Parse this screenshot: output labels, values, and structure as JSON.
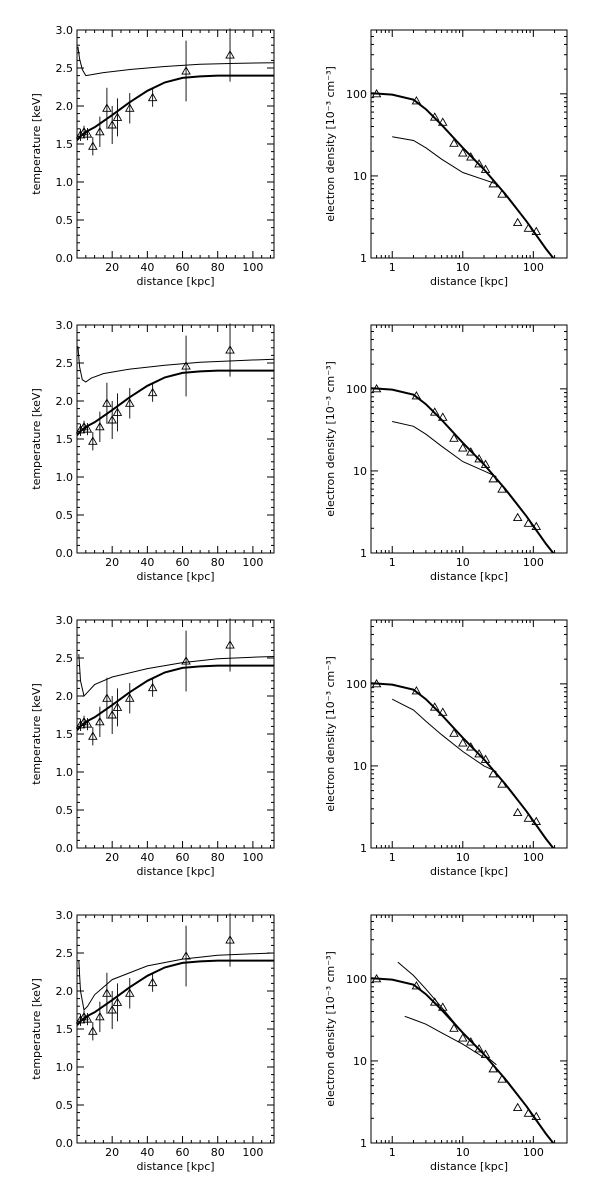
{
  "chart_data": [
    {
      "type": "line",
      "panel": "temperature-1",
      "xlabel": "distance [kpc]",
      "ylabel": "temperature [keV]",
      "xlim": [
        0,
        112
      ],
      "ylim": [
        0.0,
        3.0
      ],
      "xticks": [
        20,
        40,
        60,
        80,
        100
      ],
      "yticks": [
        0.0,
        0.5,
        1.0,
        1.5,
        2.0,
        2.5,
        3.0
      ],
      "xticklabels": [
        "20",
        "40",
        "60",
        "80",
        "100"
      ],
      "yticklabels": [
        "0.0",
        "0.5",
        "1.0",
        "1.5",
        "2.0",
        "2.5",
        "3.0"
      ],
      "data_points": {
        "x": [
          2,
          4,
          6,
          9,
          13,
          17,
          20,
          23,
          30,
          43,
          62,
          87
        ],
        "y": [
          1.62,
          1.66,
          1.63,
          1.47,
          1.66,
          1.97,
          1.75,
          1.85,
          1.97,
          2.11,
          2.46,
          2.67
        ],
        "err": [
          0.08,
          0.08,
          0.08,
          0.12,
          0.2,
          0.27,
          0.25,
          0.25,
          0.2,
          0.12,
          0.4,
          0.35
        ]
      },
      "series": [
        {
          "style": "solid-thick",
          "x": [
            0,
            2,
            5,
            10,
            15,
            20,
            30,
            40,
            50,
            60,
            70,
            80,
            90,
            100,
            112
          ],
          "y": [
            1.55,
            1.6,
            1.66,
            1.72,
            1.8,
            1.88,
            2.05,
            2.2,
            2.31,
            2.37,
            2.39,
            2.4,
            2.4,
            2.4,
            2.4
          ]
        },
        {
          "style": "solid-thin",
          "x": [
            0.5,
            1.5,
            3,
            5,
            8,
            15,
            30,
            50,
            70,
            90,
            112
          ],
          "y": [
            2.78,
            2.62,
            2.48,
            2.4,
            2.41,
            2.44,
            2.48,
            2.52,
            2.55,
            2.56,
            2.57
          ]
        }
      ]
    },
    {
      "type": "line",
      "panel": "density-1",
      "xscale": "log",
      "yscale": "log",
      "xlabel": "distance [kpc]",
      "ylabel": "electron density [10⁻³ cm⁻³]",
      "xlim": [
        0.5,
        300
      ],
      "ylim": [
        1,
        600
      ],
      "xticks": [
        1,
        10,
        100
      ],
      "yticks": [
        1,
        10,
        100
      ],
      "xticklabels": [
        "1",
        "10",
        "100"
      ],
      "yticklabels": [
        "1",
        "10",
        "100"
      ],
      "data_points": {
        "x": [
          0.6,
          2.2,
          4,
          5.2,
          7.5,
          10,
          13,
          17,
          21,
          27,
          36,
          60,
          85,
          110
        ],
        "y": [
          100,
          82,
          52,
          45,
          25,
          19,
          17,
          14,
          12,
          8,
          6,
          2.7,
          2.3,
          2.1
        ]
      },
      "series": [
        {
          "style": "solid-thick",
          "x": [
            0.5,
            1,
            2,
            3,
            5,
            10,
            20,
            40,
            80,
            150,
            200
          ],
          "y": [
            102,
            98,
            85,
            65,
            42,
            22,
            12,
            6,
            2.8,
            1.3,
            0.95
          ]
        },
        {
          "style": "solid-thin",
          "x": [
            1,
            2,
            3,
            5,
            10,
            20,
            30
          ],
          "y": [
            30,
            27,
            22,
            16,
            11,
            9,
            8
          ]
        }
      ]
    },
    {
      "type": "line",
      "panel": "temperature-2",
      "xlabel": "distance [kpc]",
      "ylabel": "temperature [keV]",
      "xlim": [
        0,
        112
      ],
      "ylim": [
        0.0,
        3.0
      ],
      "xticks": [
        20,
        40,
        60,
        80,
        100
      ],
      "yticks": [
        0.0,
        0.5,
        1.0,
        1.5,
        2.0,
        2.5,
        3.0
      ],
      "xticklabels": [
        "20",
        "40",
        "60",
        "80",
        "100"
      ],
      "yticklabels": [
        "0.0",
        "0.5",
        "1.0",
        "1.5",
        "2.0",
        "2.5",
        "3.0"
      ],
      "data_points": {
        "x": [
          2,
          4,
          6,
          9,
          13,
          17,
          20,
          23,
          30,
          43,
          62,
          87
        ],
        "y": [
          1.62,
          1.66,
          1.63,
          1.47,
          1.66,
          1.97,
          1.75,
          1.85,
          1.97,
          2.11,
          2.46,
          2.67
        ],
        "err": [
          0.08,
          0.08,
          0.08,
          0.12,
          0.2,
          0.27,
          0.25,
          0.25,
          0.2,
          0.12,
          0.4,
          0.35
        ]
      },
      "series": [
        {
          "style": "solid-thick",
          "x": [
            0,
            2,
            5,
            10,
            15,
            20,
            30,
            40,
            50,
            60,
            70,
            80,
            90,
            100,
            112
          ],
          "y": [
            1.55,
            1.6,
            1.66,
            1.72,
            1.8,
            1.88,
            2.05,
            2.2,
            2.31,
            2.37,
            2.39,
            2.4,
            2.4,
            2.4,
            2.4
          ]
        },
        {
          "style": "solid-thin",
          "x": [
            0.5,
            1.5,
            3,
            5,
            8,
            15,
            30,
            50,
            70,
            90,
            112
          ],
          "y": [
            2.72,
            2.45,
            2.28,
            2.25,
            2.3,
            2.36,
            2.42,
            2.47,
            2.51,
            2.53,
            2.55
          ]
        }
      ]
    },
    {
      "type": "line",
      "panel": "density-2",
      "xscale": "log",
      "yscale": "log",
      "xlabel": "distance [kpc]",
      "ylabel": "electron density [10⁻³ cm⁻³]",
      "xlim": [
        0.5,
        300
      ],
      "ylim": [
        1,
        600
      ],
      "xticks": [
        1,
        10,
        100
      ],
      "yticks": [
        1,
        10,
        100
      ],
      "xticklabels": [
        "1",
        "10",
        "100"
      ],
      "yticklabels": [
        "1",
        "10",
        "100"
      ],
      "data_points": {
        "x": [
          0.6,
          2.2,
          4,
          5.2,
          7.5,
          10,
          13,
          17,
          21,
          27,
          36,
          60,
          85,
          110
        ],
        "y": [
          100,
          82,
          52,
          45,
          25,
          19,
          17,
          14,
          12,
          8,
          6,
          2.7,
          2.3,
          2.1
        ]
      },
      "series": [
        {
          "style": "solid-thick",
          "x": [
            0.5,
            1,
            2,
            3,
            5,
            10,
            20,
            40,
            80,
            150,
            200
          ],
          "y": [
            102,
            98,
            85,
            65,
            42,
            22,
            12,
            6,
            2.8,
            1.3,
            0.95
          ]
        },
        {
          "style": "solid-thin",
          "x": [
            1,
            2,
            3,
            5,
            10,
            20,
            30
          ],
          "y": [
            40,
            35,
            28,
            20,
            13,
            10,
            8.5
          ]
        }
      ]
    },
    {
      "type": "line",
      "panel": "temperature-3",
      "xlabel": "distance [kpc]",
      "ylabel": "temperature [keV]",
      "xlim": [
        0,
        112
      ],
      "ylim": [
        0.0,
        3.0
      ],
      "xticks": [
        20,
        40,
        60,
        80,
        100
      ],
      "yticks": [
        0.0,
        0.5,
        1.0,
        1.5,
        2.0,
        2.5,
        3.0
      ],
      "xticklabels": [
        "20",
        "40",
        "60",
        "80",
        "100"
      ],
      "yticklabels": [
        "0.0",
        "0.5",
        "1.0",
        "1.5",
        "2.0",
        "2.5",
        "3.0"
      ],
      "data_points": {
        "x": [
          2,
          4,
          6,
          9,
          13,
          17,
          20,
          23,
          30,
          43,
          62,
          87
        ],
        "y": [
          1.62,
          1.66,
          1.63,
          1.47,
          1.66,
          1.97,
          1.75,
          1.85,
          1.97,
          2.11,
          2.46,
          2.67
        ],
        "err": [
          0.08,
          0.08,
          0.08,
          0.12,
          0.2,
          0.27,
          0.25,
          0.25,
          0.2,
          0.12,
          0.4,
          0.35
        ]
      },
      "series": [
        {
          "style": "solid-thick",
          "x": [
            0,
            2,
            5,
            10,
            15,
            20,
            30,
            40,
            50,
            60,
            70,
            80,
            90,
            100,
            112
          ],
          "y": [
            1.55,
            1.6,
            1.66,
            1.72,
            1.8,
            1.88,
            2.05,
            2.2,
            2.31,
            2.37,
            2.39,
            2.4,
            2.4,
            2.4,
            2.4
          ]
        },
        {
          "style": "solid-thin",
          "x": [
            1,
            2,
            4,
            6,
            10,
            20,
            40,
            60,
            80,
            100,
            112
          ],
          "y": [
            2.55,
            2.2,
            2.0,
            2.05,
            2.15,
            2.25,
            2.36,
            2.44,
            2.49,
            2.51,
            2.52
          ]
        }
      ]
    },
    {
      "type": "line",
      "panel": "density-3",
      "xscale": "log",
      "yscale": "log",
      "xlabel": "distance [kpc]",
      "ylabel": "electron density [10⁻³ cm⁻³]",
      "xlim": [
        0.5,
        300
      ],
      "ylim": [
        1,
        600
      ],
      "xticks": [
        1,
        10,
        100
      ],
      "yticks": [
        1,
        10,
        100
      ],
      "xticklabels": [
        "1",
        "10",
        "100"
      ],
      "yticklabels": [
        "1",
        "10",
        "100"
      ],
      "data_points": {
        "x": [
          0.6,
          2.2,
          4,
          5.2,
          7.5,
          10,
          13,
          17,
          21,
          27,
          36,
          60,
          85,
          110
        ],
        "y": [
          100,
          82,
          52,
          45,
          25,
          19,
          17,
          14,
          12,
          8,
          6,
          2.7,
          2.3,
          2.1
        ]
      },
      "series": [
        {
          "style": "solid-thick",
          "x": [
            0.5,
            1,
            2,
            3,
            5,
            10,
            20,
            40,
            80,
            150,
            200
          ],
          "y": [
            102,
            98,
            85,
            65,
            42,
            22,
            12,
            6,
            2.8,
            1.3,
            0.95
          ]
        },
        {
          "style": "solid-thin",
          "x": [
            1,
            2,
            3,
            5,
            10,
            20,
            30
          ],
          "y": [
            65,
            48,
            35,
            24,
            15,
            10,
            8.5
          ]
        }
      ]
    },
    {
      "type": "line",
      "panel": "temperature-4",
      "xlabel": "distance [kpc]",
      "ylabel": "temperature [keV]",
      "xlim": [
        0,
        112
      ],
      "ylim": [
        0.0,
        3.0
      ],
      "xticks": [
        20,
        40,
        60,
        80,
        100
      ],
      "yticks": [
        0.0,
        0.5,
        1.0,
        1.5,
        2.0,
        2.5,
        3.0
      ],
      "xticklabels": [
        "20",
        "40",
        "60",
        "80",
        "100"
      ],
      "yticklabels": [
        "0.0",
        "0.5",
        "1.0",
        "1.5",
        "2.0",
        "2.5",
        "3.0"
      ],
      "data_points": {
        "x": [
          2,
          4,
          6,
          9,
          13,
          17,
          20,
          23,
          30,
          43,
          62,
          87
        ],
        "y": [
          1.62,
          1.66,
          1.63,
          1.47,
          1.66,
          1.97,
          1.75,
          1.85,
          1.97,
          2.11,
          2.46,
          2.67
        ],
        "err": [
          0.08,
          0.08,
          0.08,
          0.12,
          0.2,
          0.27,
          0.25,
          0.25,
          0.2,
          0.12,
          0.4,
          0.35
        ]
      },
      "series": [
        {
          "style": "solid-thick",
          "x": [
            0,
            2,
            5,
            10,
            15,
            20,
            30,
            40,
            50,
            60,
            70,
            80,
            90,
            100,
            112
          ],
          "y": [
            1.55,
            1.6,
            1.66,
            1.72,
            1.8,
            1.88,
            2.05,
            2.2,
            2.31,
            2.37,
            2.39,
            2.4,
            2.4,
            2.4,
            2.4
          ]
        },
        {
          "style": "solid-thin",
          "x": [
            1,
            2,
            4,
            6,
            10,
            20,
            40,
            60,
            80,
            100,
            112
          ],
          "y": [
            2.4,
            2.0,
            1.75,
            1.8,
            1.95,
            2.15,
            2.33,
            2.42,
            2.47,
            2.49,
            2.5
          ]
        }
      ]
    },
    {
      "type": "line",
      "panel": "density-4",
      "xscale": "log",
      "yscale": "log",
      "xlabel": "distance [kpc]",
      "ylabel": "electron density [10⁻³ cm⁻³]",
      "xlim": [
        0.5,
        300
      ],
      "ylim": [
        1,
        600
      ],
      "xticks": [
        1,
        10,
        100
      ],
      "yticks": [
        1,
        10,
        100
      ],
      "xticklabels": [
        "1",
        "10",
        "100"
      ],
      "yticklabels": [
        "1",
        "10",
        "100"
      ],
      "data_points": {
        "x": [
          0.6,
          2.2,
          4,
          5.2,
          7.5,
          10,
          13,
          17,
          21,
          27,
          36,
          60,
          85,
          110
        ],
        "y": [
          100,
          82,
          52,
          45,
          25,
          19,
          17,
          14,
          12,
          8,
          6,
          2.7,
          2.3,
          2.1
        ]
      },
      "series": [
        {
          "style": "solid-thick",
          "x": [
            0.5,
            1,
            2,
            3,
            5,
            10,
            20,
            40,
            80,
            150,
            200
          ],
          "y": [
            102,
            98,
            85,
            65,
            42,
            22,
            12,
            6,
            2.8,
            1.3,
            0.95
          ]
        },
        {
          "style": "solid-thin",
          "x": [
            1.2,
            2,
            3,
            5,
            10,
            20,
            30
          ],
          "y": [
            160,
            110,
            75,
            45,
            22,
            12,
            9
          ]
        },
        {
          "style": "solid-thin",
          "x": [
            1.5,
            2,
            3,
            5,
            10,
            20
          ],
          "y": [
            35,
            32,
            28,
            22,
            16,
            11
          ]
        }
      ]
    }
  ]
}
